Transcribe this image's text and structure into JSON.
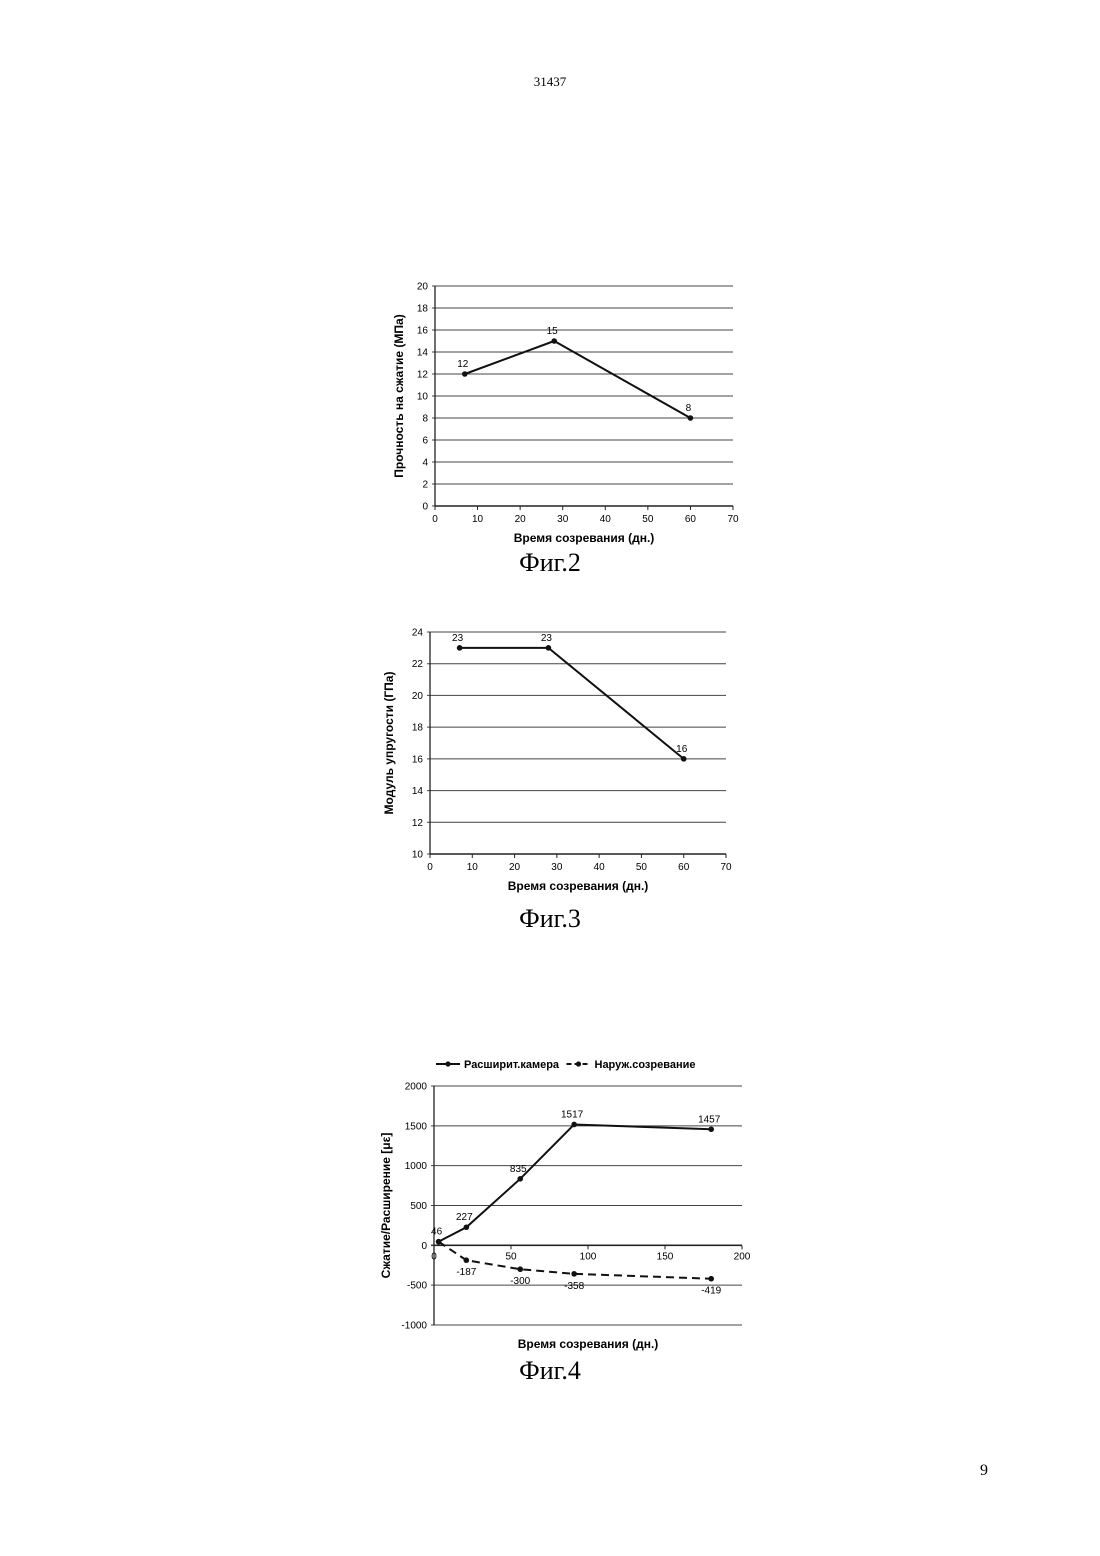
{
  "header": {
    "doc_number": "31437"
  },
  "footer": {
    "page_number": "9"
  },
  "chart_data": [
    {
      "type": "line",
      "caption": "Фиг.2",
      "xlabel": "Время созревания (дн.)",
      "ylabel": "Прочность на сжатие (МПа)",
      "xlim": [
        0,
        70
      ],
      "ylim": [
        0,
        20
      ],
      "xticks": [
        "0",
        "10",
        "20",
        "30",
        "40",
        "50",
        "60",
        "70"
      ],
      "yticks": [
        "0",
        "2",
        "4",
        "6",
        "8",
        "10",
        "12",
        "14",
        "16",
        "18",
        "20"
      ],
      "grid": true,
      "series": [
        {
          "x": [
            7,
            28,
            60
          ],
          "y": [
            12,
            15,
            8
          ],
          "labels": [
            "12",
            "15",
            "8"
          ],
          "style": "solid"
        }
      ]
    },
    {
      "type": "line",
      "caption": "Фиг.3",
      "xlabel": "Время созревания (дн.)",
      "ylabel": "Модуль упругости (ГПа)",
      "xlim": [
        0,
        70
      ],
      "ylim": [
        10,
        24
      ],
      "xticks": [
        "0",
        "10",
        "20",
        "30",
        "40",
        "50",
        "60",
        "70"
      ],
      "yticks": [
        "10",
        "12",
        "14",
        "16",
        "18",
        "20",
        "22",
        "24"
      ],
      "grid": true,
      "series": [
        {
          "x": [
            7,
            28,
            60
          ],
          "y": [
            23,
            23,
            16
          ],
          "labels": [
            "23",
            "23",
            "16"
          ],
          "style": "solid"
        }
      ]
    },
    {
      "type": "line",
      "caption": "Фиг.4",
      "xlabel": "Время созревания (дн.)",
      "ylabel": "Сжатие/Расширение [με]",
      "xlim": [
        0,
        200
      ],
      "ylim": [
        -1000,
        2000
      ],
      "xticks": [
        "0",
        "50",
        "100",
        "150",
        "200"
      ],
      "yticks": [
        "-1000",
        "-500",
        "0",
        "500",
        "1000",
        "1500",
        "2000"
      ],
      "grid": true,
      "legend": "top",
      "series": [
        {
          "name": "Расширит.камера",
          "style": "solid",
          "x": [
            3,
            21,
            56,
            91,
            180
          ],
          "y": [
            46,
            227,
            835,
            1517,
            1457
          ],
          "labels": [
            "46",
            "227",
            "835",
            "1517",
            "1457"
          ]
        },
        {
          "name": "Наруж.созревание",
          "style": "dashed",
          "x": [
            3,
            21,
            56,
            91,
            180
          ],
          "y": [
            46,
            -187,
            -300,
            -358,
            -419
          ],
          "labels": [
            "",
            "-187",
            "-300",
            "-358",
            "-419"
          ]
        }
      ]
    }
  ]
}
